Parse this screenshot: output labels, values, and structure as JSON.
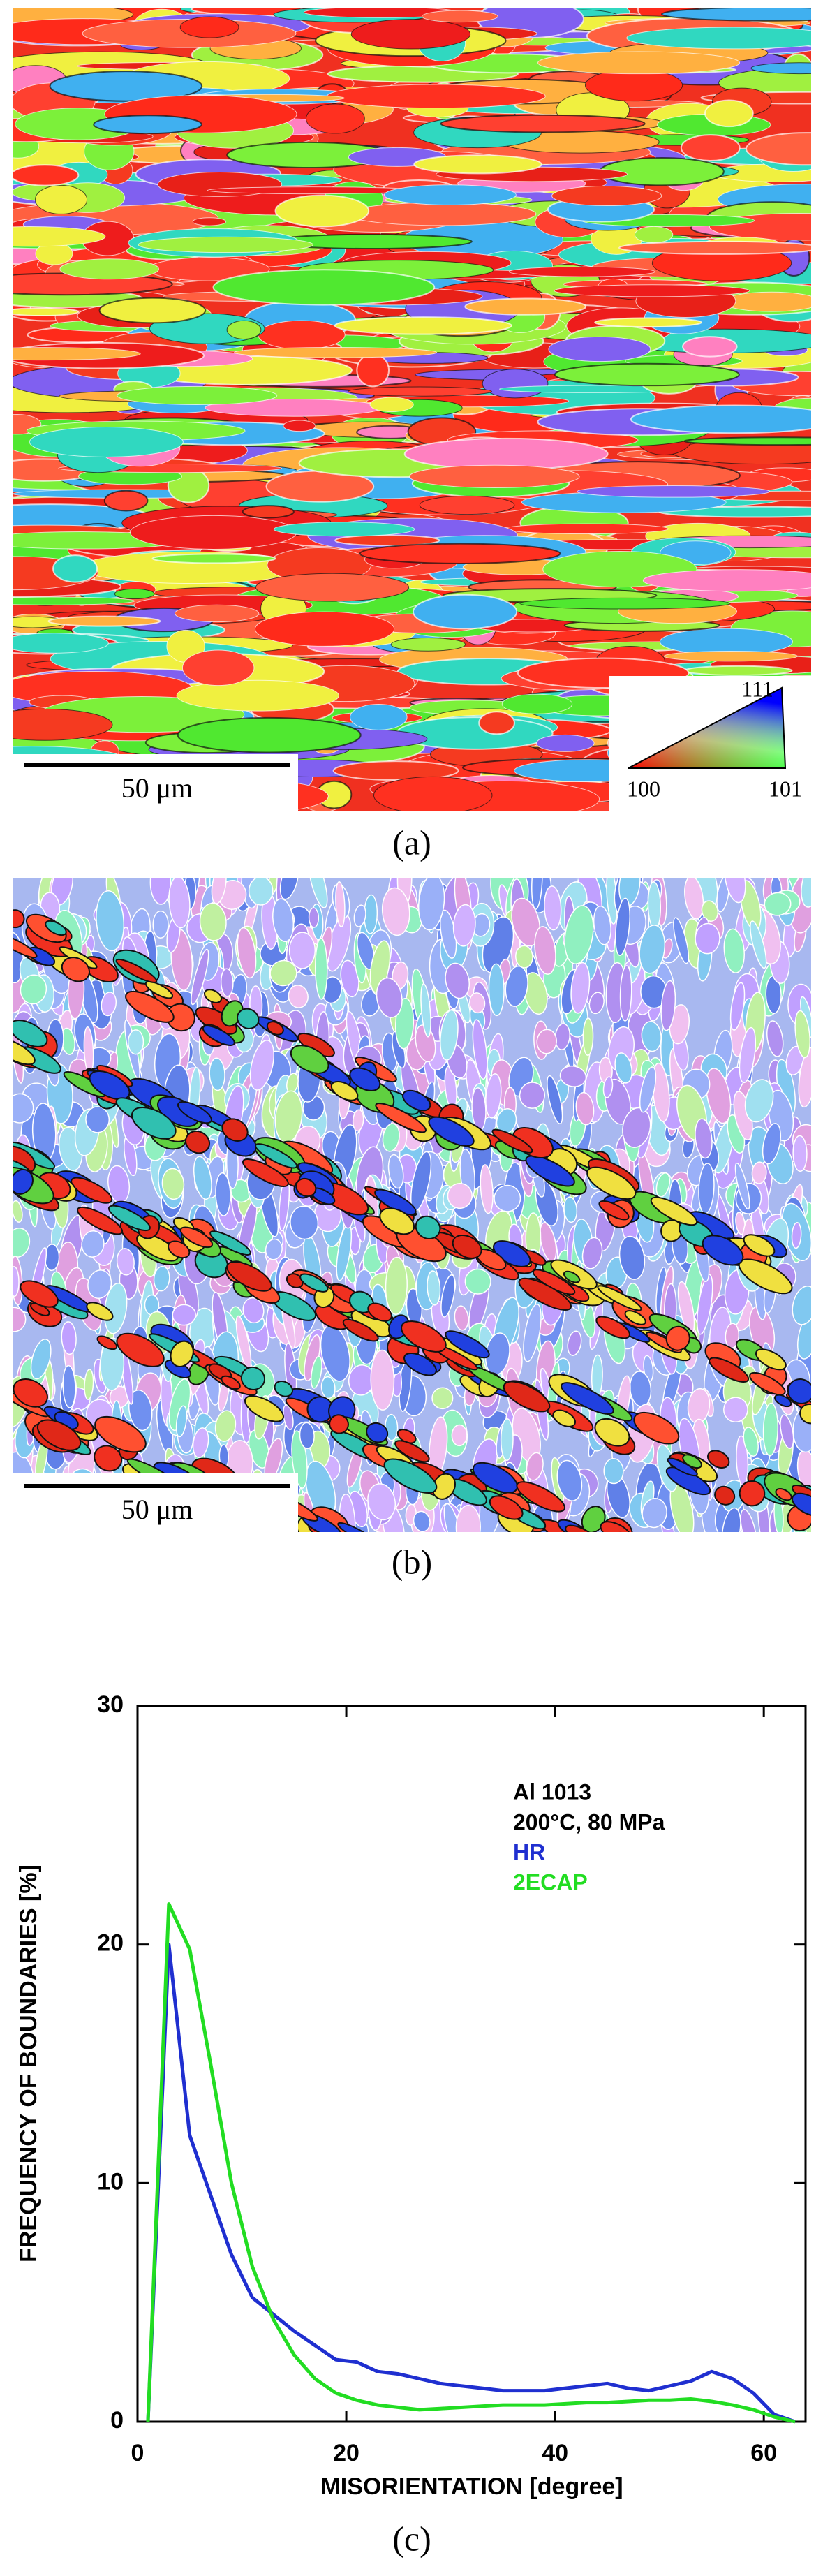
{
  "panels": {
    "a": {
      "label": "(a)",
      "scale_bar": "50 μm",
      "legend": {
        "top": "111",
        "left": "100",
        "right": "101"
      }
    },
    "b": {
      "label": "(b)",
      "scale_bar": "50 μm"
    },
    "c": {
      "label": "(c)"
    }
  },
  "chart_data": {
    "type": "line",
    "x_label": "MISORIENTATION [degree]",
    "y_label": "FREQUENCY OF BOUNDARIES [%]",
    "annotations": [
      "Al 1013",
      "200°C, 80 MPa"
    ],
    "x": [
      1,
      3,
      5,
      7,
      9,
      11,
      13,
      15,
      17,
      19,
      21,
      23,
      25,
      27,
      29,
      31,
      33,
      35,
      37,
      39,
      41,
      43,
      45,
      47,
      49,
      51,
      53,
      55,
      57,
      59,
      61,
      63
    ],
    "series": [
      {
        "name": "HR",
        "color": "#1f2fd0",
        "values": [
          0,
          20,
          12,
          9.5,
          7,
          5.2,
          4.5,
          3.8,
          3.2,
          2.6,
          2.5,
          2.1,
          2,
          1.8,
          1.6,
          1.5,
          1.4,
          1.3,
          1.3,
          1.3,
          1.4,
          1.5,
          1.6,
          1.4,
          1.3,
          1.5,
          1.7,
          2.1,
          1.8,
          1.2,
          0.3,
          0
        ]
      },
      {
        "name": "2ECAP",
        "color": "#22dd22",
        "values": [
          0,
          21.7,
          19.8,
          15,
          10,
          6.5,
          4.3,
          2.8,
          1.8,
          1.2,
          0.9,
          0.7,
          0.6,
          0.5,
          0.55,
          0.6,
          0.65,
          0.7,
          0.7,
          0.7,
          0.75,
          0.8,
          0.8,
          0.85,
          0.9,
          0.9,
          0.95,
          0.85,
          0.7,
          0.5,
          0.2,
          0
        ]
      }
    ],
    "xlim": [
      0,
      64
    ],
    "ylim": [
      0,
      30
    ],
    "xticks": [
      0,
      20,
      40,
      60
    ],
    "yticks": [
      0,
      10,
      20,
      30
    ]
  }
}
